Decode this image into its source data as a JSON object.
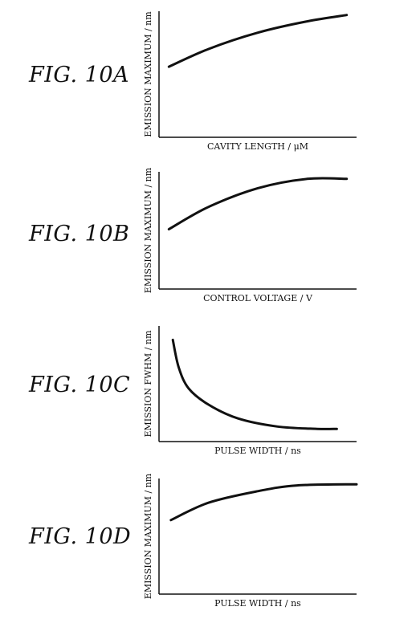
{
  "figures": [
    {
      "label": "FIG. 10A"
    },
    {
      "label": "FIG. 10B"
    },
    {
      "label": "FIG. 10C"
    },
    {
      "label": "FIG. 10D"
    }
  ],
  "chart_data": [
    {
      "type": "line",
      "xlabel": "CAVITY LENGTH / μM",
      "ylabel": "EMISSION MAXIMUM / nm",
      "xlim": [
        0,
        1
      ],
      "ylim": [
        0,
        1
      ],
      "series": [
        {
          "x": [
            0.05,
            0.25,
            0.5,
            0.75,
            0.95
          ],
          "y": [
            0.56,
            0.7,
            0.83,
            0.92,
            0.97
          ]
        }
      ]
    },
    {
      "type": "line",
      "xlabel": "CONTROL VOLTAGE / V",
      "ylabel": "EMISSION MAXIMUM / nm",
      "xlim": [
        0,
        1
      ],
      "ylim": [
        0,
        1
      ],
      "series": [
        {
          "x": [
            0.05,
            0.25,
            0.5,
            0.75,
            0.95
          ],
          "y": [
            0.51,
            0.7,
            0.86,
            0.94,
            0.94
          ]
        }
      ]
    },
    {
      "type": "line",
      "xlabel": "PULSE WIDTH / ns",
      "ylabel": "EMISSION FWHM / nm",
      "xlim": [
        0,
        1
      ],
      "ylim": [
        0,
        1
      ],
      "series": [
        {
          "x": [
            0.07,
            0.1,
            0.15,
            0.25,
            0.4,
            0.6,
            0.8,
            0.9
          ],
          "y": [
            0.88,
            0.64,
            0.46,
            0.32,
            0.2,
            0.13,
            0.11,
            0.11
          ]
        }
      ]
    },
    {
      "type": "line",
      "xlabel": "PULSE WIDTH / ns",
      "ylabel": "EMISSION MAXIMUM / nm",
      "xlim": [
        0,
        1
      ],
      "ylim": [
        0,
        1
      ],
      "series": [
        {
          "x": [
            0.06,
            0.25,
            0.5,
            0.7,
            1.0
          ],
          "y": [
            0.64,
            0.79,
            0.89,
            0.94,
            0.95
          ]
        }
      ]
    }
  ]
}
